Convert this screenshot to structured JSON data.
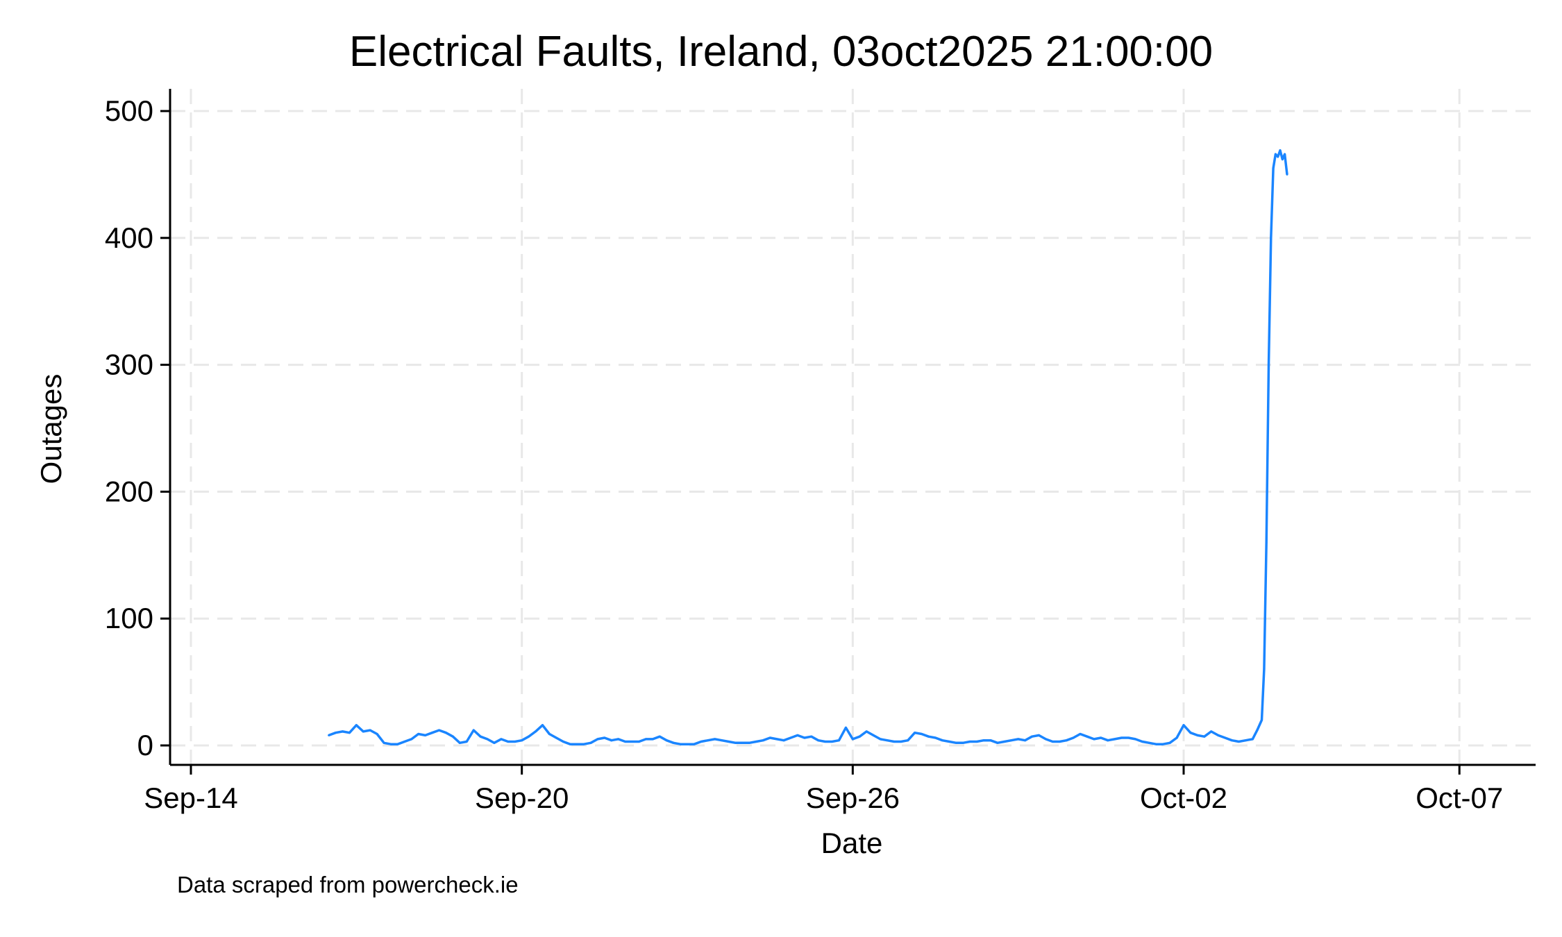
{
  "chart_data": {
    "type": "line",
    "title": "Electrical Faults, Ireland, 03oct2025 21:00:00",
    "xlabel": "Date",
    "ylabel": "Outages",
    "note": "Data scraped from powercheck.ie",
    "x_ticks": [
      "Sep-14",
      "Sep-20",
      "Sep-26",
      "Oct-02",
      "Oct-07"
    ],
    "y_ticks": [
      0,
      100,
      200,
      300,
      400,
      500
    ],
    "xlim": [
      "2025-09-14",
      "2025-10-08"
    ],
    "ylim": [
      0,
      510
    ],
    "grid": true,
    "line_color": "#1a85ff",
    "series": [
      {
        "points": [
          [
            "2025-09-16 12:00",
            8
          ],
          [
            "2025-09-16 15:00",
            10
          ],
          [
            "2025-09-16 18:00",
            11
          ],
          [
            "2025-09-16 21:00",
            10
          ],
          [
            "2025-09-17 00:00",
            16
          ],
          [
            "2025-09-17 03:00",
            11
          ],
          [
            "2025-09-17 06:00",
            12
          ],
          [
            "2025-09-17 09:00",
            9
          ],
          [
            "2025-09-17 12:00",
            2
          ],
          [
            "2025-09-17 15:00",
            1
          ],
          [
            "2025-09-17 18:00",
            1
          ],
          [
            "2025-09-17 21:00",
            3
          ],
          [
            "2025-09-18 00:00",
            5
          ],
          [
            "2025-09-18 03:00",
            9
          ],
          [
            "2025-09-18 06:00",
            8
          ],
          [
            "2025-09-18 09:00",
            10
          ],
          [
            "2025-09-18 12:00",
            12
          ],
          [
            "2025-09-18 15:00",
            10
          ],
          [
            "2025-09-18 18:00",
            7
          ],
          [
            "2025-09-18 21:00",
            2
          ],
          [
            "2025-09-19 00:00",
            3
          ],
          [
            "2025-09-19 03:00",
            12
          ],
          [
            "2025-09-19 06:00",
            7
          ],
          [
            "2025-09-19 09:00",
            5
          ],
          [
            "2025-09-19 12:00",
            2
          ],
          [
            "2025-09-19 15:00",
            5
          ],
          [
            "2025-09-19 18:00",
            3
          ],
          [
            "2025-09-19 21:00",
            3
          ],
          [
            "2025-09-20 00:00",
            4
          ],
          [
            "2025-09-20 03:00",
            7
          ],
          [
            "2025-09-20 06:00",
            11
          ],
          [
            "2025-09-20 09:00",
            16
          ],
          [
            "2025-09-20 12:00",
            9
          ],
          [
            "2025-09-20 15:00",
            6
          ],
          [
            "2025-09-20 18:00",
            3
          ],
          [
            "2025-09-20 21:00",
            1
          ],
          [
            "2025-09-21 00:00",
            1
          ],
          [
            "2025-09-21 03:00",
            1
          ],
          [
            "2025-09-21 06:00",
            2
          ],
          [
            "2025-09-21 09:00",
            5
          ],
          [
            "2025-09-21 12:00",
            6
          ],
          [
            "2025-09-21 15:00",
            4
          ],
          [
            "2025-09-21 18:00",
            5
          ],
          [
            "2025-09-21 21:00",
            3
          ],
          [
            "2025-09-22 00:00",
            3
          ],
          [
            "2025-09-22 03:00",
            3
          ],
          [
            "2025-09-22 06:00",
            5
          ],
          [
            "2025-09-22 09:00",
            5
          ],
          [
            "2025-09-22 12:00",
            7
          ],
          [
            "2025-09-22 15:00",
            4
          ],
          [
            "2025-09-22 18:00",
            2
          ],
          [
            "2025-09-22 21:00",
            1
          ],
          [
            "2025-09-23 00:00",
            1
          ],
          [
            "2025-09-23 03:00",
            1
          ],
          [
            "2025-09-23 06:00",
            3
          ],
          [
            "2025-09-23 09:00",
            4
          ],
          [
            "2025-09-23 12:00",
            5
          ],
          [
            "2025-09-23 15:00",
            4
          ],
          [
            "2025-09-23 18:00",
            3
          ],
          [
            "2025-09-23 21:00",
            2
          ],
          [
            "2025-09-24 00:00",
            2
          ],
          [
            "2025-09-24 03:00",
            2
          ],
          [
            "2025-09-24 06:00",
            3
          ],
          [
            "2025-09-24 09:00",
            4
          ],
          [
            "2025-09-24 12:00",
            6
          ],
          [
            "2025-09-24 15:00",
            5
          ],
          [
            "2025-09-24 18:00",
            4
          ],
          [
            "2025-09-24 21:00",
            6
          ],
          [
            "2025-09-25 00:00",
            8
          ],
          [
            "2025-09-25 03:00",
            6
          ],
          [
            "2025-09-25 06:00",
            7
          ],
          [
            "2025-09-25 09:00",
            4
          ],
          [
            "2025-09-25 12:00",
            3
          ],
          [
            "2025-09-25 15:00",
            3
          ],
          [
            "2025-09-25 18:00",
            4
          ],
          [
            "2025-09-25 21:00",
            14
          ],
          [
            "2025-09-26 00:00",
            5
          ],
          [
            "2025-09-26 03:00",
            7
          ],
          [
            "2025-09-26 06:00",
            11
          ],
          [
            "2025-09-26 09:00",
            8
          ],
          [
            "2025-09-26 12:00",
            5
          ],
          [
            "2025-09-26 15:00",
            4
          ],
          [
            "2025-09-26 18:00",
            3
          ],
          [
            "2025-09-26 21:00",
            3
          ],
          [
            "2025-09-27 00:00",
            4
          ],
          [
            "2025-09-27 03:00",
            10
          ],
          [
            "2025-09-27 06:00",
            9
          ],
          [
            "2025-09-27 09:00",
            7
          ],
          [
            "2025-09-27 12:00",
            6
          ],
          [
            "2025-09-27 15:00",
            4
          ],
          [
            "2025-09-27 18:00",
            3
          ],
          [
            "2025-09-27 21:00",
            2
          ],
          [
            "2025-09-28 00:00",
            2
          ],
          [
            "2025-09-28 03:00",
            3
          ],
          [
            "2025-09-28 06:00",
            3
          ],
          [
            "2025-09-28 09:00",
            4
          ],
          [
            "2025-09-28 12:00",
            4
          ],
          [
            "2025-09-28 15:00",
            2
          ],
          [
            "2025-09-28 18:00",
            3
          ],
          [
            "2025-09-28 21:00",
            4
          ],
          [
            "2025-09-29 00:00",
            5
          ],
          [
            "2025-09-29 03:00",
            4
          ],
          [
            "2025-09-29 06:00",
            7
          ],
          [
            "2025-09-29 09:00",
            8
          ],
          [
            "2025-09-29 12:00",
            5
          ],
          [
            "2025-09-29 15:00",
            3
          ],
          [
            "2025-09-29 18:00",
            3
          ],
          [
            "2025-09-29 21:00",
            4
          ],
          [
            "2025-09-30 00:00",
            6
          ],
          [
            "2025-09-30 03:00",
            9
          ],
          [
            "2025-09-30 06:00",
            7
          ],
          [
            "2025-09-30 09:00",
            5
          ],
          [
            "2025-09-30 12:00",
            6
          ],
          [
            "2025-09-30 15:00",
            4
          ],
          [
            "2025-09-30 18:00",
            5
          ],
          [
            "2025-09-30 21:00",
            6
          ],
          [
            "2025-10-01 00:00",
            6
          ],
          [
            "2025-10-01 03:00",
            5
          ],
          [
            "2025-10-01 06:00",
            3
          ],
          [
            "2025-10-01 09:00",
            2
          ],
          [
            "2025-10-01 12:00",
            1
          ],
          [
            "2025-10-01 15:00",
            1
          ],
          [
            "2025-10-01 18:00",
            2
          ],
          [
            "2025-10-01 21:00",
            6
          ],
          [
            "2025-10-02 00:00",
            16
          ],
          [
            "2025-10-02 03:00",
            10
          ],
          [
            "2025-10-02 06:00",
            8
          ],
          [
            "2025-10-02 09:00",
            7
          ],
          [
            "2025-10-02 12:00",
            11
          ],
          [
            "2025-10-02 15:00",
            8
          ],
          [
            "2025-10-02 18:00",
            6
          ],
          [
            "2025-10-02 21:00",
            4
          ],
          [
            "2025-10-03 00:00",
            3
          ],
          [
            "2025-10-03 03:00",
            4
          ],
          [
            "2025-10-03 06:00",
            5
          ],
          [
            "2025-10-03 08:00",
            12
          ],
          [
            "2025-10-03 10:00",
            20
          ],
          [
            "2025-10-03 11:00",
            60
          ],
          [
            "2025-10-03 12:00",
            160
          ],
          [
            "2025-10-03 13:00",
            300
          ],
          [
            "2025-10-03 14:00",
            400
          ],
          [
            "2025-10-03 15:00",
            455
          ],
          [
            "2025-10-03 16:00",
            466
          ],
          [
            "2025-10-03 17:00",
            464
          ],
          [
            "2025-10-03 18:00",
            469
          ],
          [
            "2025-10-03 19:00",
            462
          ],
          [
            "2025-10-03 20:00",
            466
          ],
          [
            "2025-10-03 21:00",
            450
          ]
        ]
      }
    ]
  }
}
